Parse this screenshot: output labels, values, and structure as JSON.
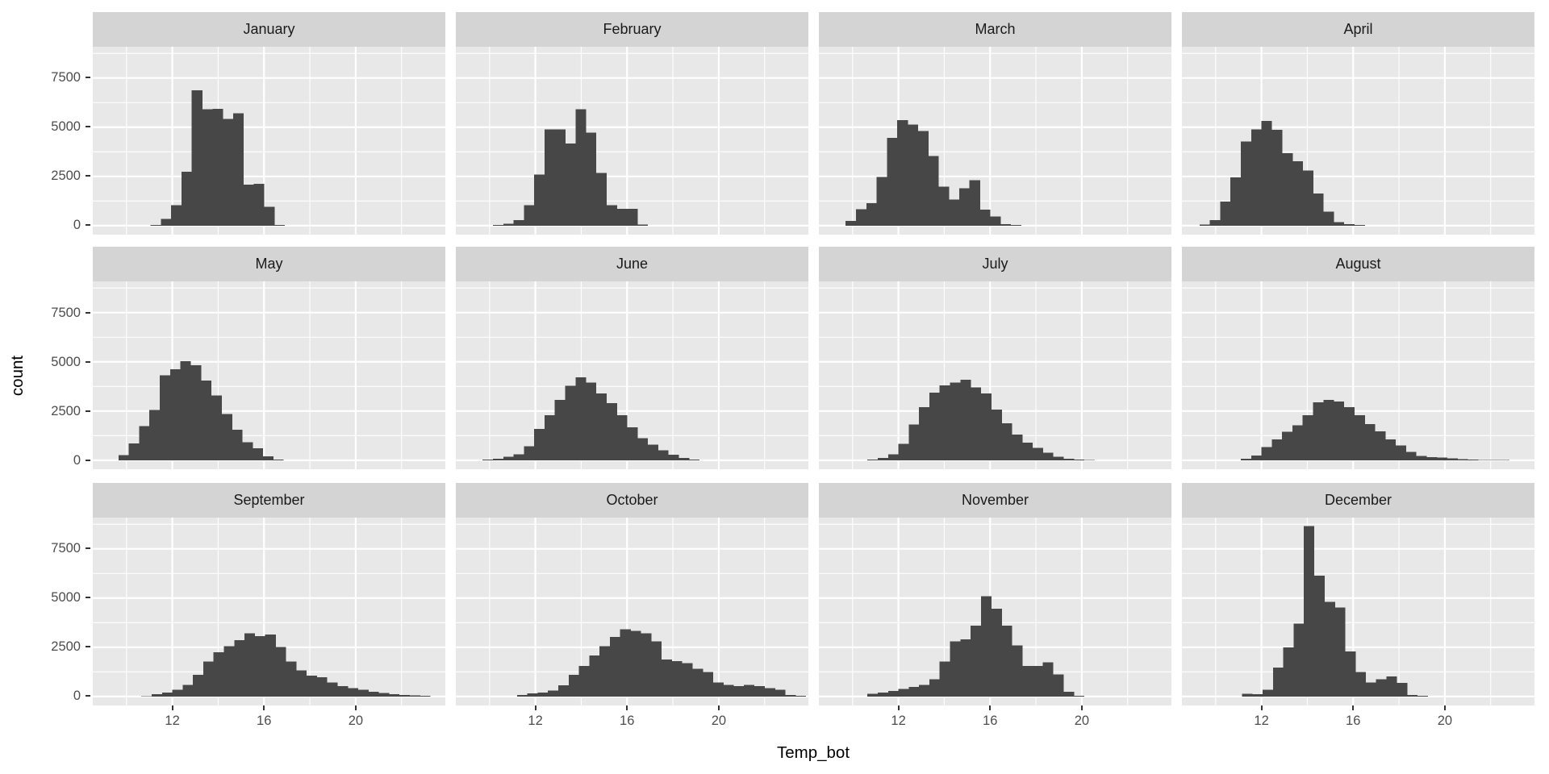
{
  "chart_data": {
    "type": "bar",
    "subtype": "faceted-histogram",
    "title": "",
    "xlabel": "Temp_bot",
    "ylabel": "count",
    "x_ticks": [
      12,
      16,
      20
    ],
    "y_ticks": [
      7500,
      5000,
      2500,
      0
    ],
    "x_minor_gridlines": [
      10,
      14,
      18,
      22
    ],
    "y_minor_gridlines": [
      1250,
      3750,
      6250,
      8750
    ],
    "x_display_range": [
      8.53,
      23.91
    ],
    "y_display_range": [
      -455,
      9085
    ],
    "binwidth": 0.45,
    "grid": true,
    "legend_position": "none",
    "facet_layout": {
      "rows": 3,
      "cols": 4
    },
    "facets": [
      {
        "label": "January",
        "start": 11.05,
        "counts": [
          30,
          350,
          1040,
          2740,
          6880,
          5910,
          5940,
          5420,
          5700,
          2090,
          2130,
          950,
          30
        ]
      },
      {
        "label": "February",
        "start": 10.15,
        "counts": [
          40,
          100,
          280,
          1040,
          2600,
          4890,
          4890,
          4170,
          5910,
          4730,
          2670,
          1040,
          860,
          860,
          50
        ]
      },
      {
        "label": "March",
        "start": 9.7,
        "counts": [
          250,
          830,
          1150,
          2470,
          4450,
          5350,
          5140,
          4810,
          3540,
          1990,
          1330,
          1890,
          2310,
          810,
          460,
          70,
          40
        ]
      },
      {
        "label": "April",
        "start": 9.3,
        "counts": [
          60,
          280,
          1220,
          2460,
          4270,
          4890,
          5320,
          4860,
          3680,
          3270,
          2810,
          1630,
          720,
          180,
          70,
          30
        ]
      },
      {
        "label": "May",
        "start": 9.65,
        "counts": [
          270,
          860,
          1740,
          2560,
          4310,
          4620,
          5030,
          4830,
          4050,
          3290,
          2340,
          1560,
          920,
          610,
          200,
          30
        ]
      },
      {
        "label": "June",
        "start": 9.7,
        "counts": [
          30,
          70,
          180,
          310,
          720,
          1600,
          2280,
          3070,
          3780,
          4220,
          3940,
          3400,
          2900,
          2280,
          1670,
          1130,
          790,
          500,
          280,
          120,
          40
        ]
      },
      {
        "label": "July",
        "start": 10.65,
        "counts": [
          30,
          110,
          310,
          830,
          1810,
          2690,
          3440,
          3810,
          3940,
          4080,
          3710,
          3400,
          2580,
          1880,
          1310,
          900,
          630,
          380,
          180,
          70,
          40,
          20
        ]
      },
      {
        "label": "August",
        "start": 11.1,
        "counts": [
          80,
          240,
          680,
          1060,
          1440,
          1770,
          2280,
          2940,
          3070,
          2990,
          2690,
          2280,
          1840,
          1460,
          1060,
          760,
          420,
          230,
          150,
          130,
          90,
          60,
          40,
          25,
          20,
          15
        ]
      },
      {
        "label": "September",
        "start": 10.65,
        "counts": [
          20,
          110,
          200,
          340,
          590,
          1100,
          1780,
          2240,
          2560,
          2870,
          3200,
          3060,
          3140,
          2520,
          1780,
          1330,
          1060,
          970,
          720,
          520,
          420,
          340,
          250,
          180,
          120,
          80,
          50,
          30
        ]
      },
      {
        "label": "October",
        "start": 11.2,
        "counts": [
          70,
          150,
          200,
          310,
          560,
          1100,
          1560,
          2080,
          2560,
          3030,
          3410,
          3330,
          3200,
          2790,
          1880,
          1800,
          1700,
          1400,
          1240,
          720,
          590,
          520,
          590,
          520,
          420,
          340,
          70,
          30
        ]
      },
      {
        "label": "November",
        "start": 10.65,
        "counts": [
          140,
          200,
          290,
          380,
          480,
          590,
          880,
          1780,
          2790,
          2900,
          3600,
          5100,
          4460,
          3600,
          2600,
          1560,
          1560,
          1740,
          1130,
          240,
          40
        ]
      },
      {
        "label": "December",
        "start": 11.15,
        "counts": [
          140,
          110,
          340,
          1470,
          2490,
          3710,
          8650,
          6130,
          4810,
          4510,
          2280,
          1240,
          720,
          880,
          1020,
          690,
          70,
          30
        ]
      }
    ]
  },
  "colors": {
    "bar": "#474747",
    "panel_bg": "#e8e8e8",
    "strip_bg": "#d4d4d4",
    "gridline": "#ffffff",
    "tick_text": "#4d4d4d",
    "strip_text": "#1a1a1a",
    "axis_title_text": "#000000",
    "tick_mark": "#333333",
    "page_bg": "#ffffff"
  }
}
